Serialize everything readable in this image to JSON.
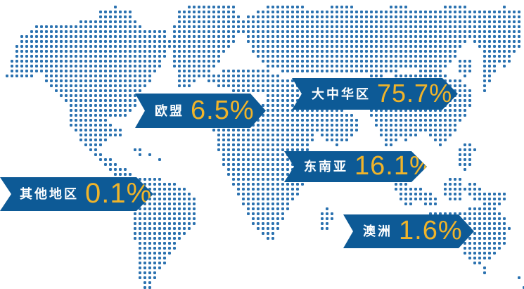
{
  "page": {
    "background": "#ffffff"
  },
  "colors": {
    "banner_blue": "#0D5A96",
    "dot_blue": "#2B72B0",
    "value_gold": "#F0B42A",
    "label_white": "#FFFFFF"
  },
  "banners": [
    {
      "id": "greater-china",
      "label": "大中华区",
      "value": "75.7%"
    },
    {
      "id": "southeast-asia",
      "label": "东南亚",
      "value": "16.1%"
    },
    {
      "id": "eu",
      "label": "欧盟",
      "value": "6.5%"
    },
    {
      "id": "australia",
      "label": "澳洲",
      "value": "1.6%"
    },
    {
      "id": "other-regions",
      "label": "其他地区",
      "value": "0.1%"
    }
  ],
  "chart_data": {
    "type": "pie",
    "categories": [
      "大中华区",
      "东南亚",
      "欧盟",
      "澳洲",
      "其他地区"
    ],
    "values": [
      75.7,
      16.1,
      6.5,
      1.6,
      0.1
    ],
    "unit": "%",
    "title": "",
    "legend_position": "map-callouts",
    "background": "dotted-world-map"
  }
}
